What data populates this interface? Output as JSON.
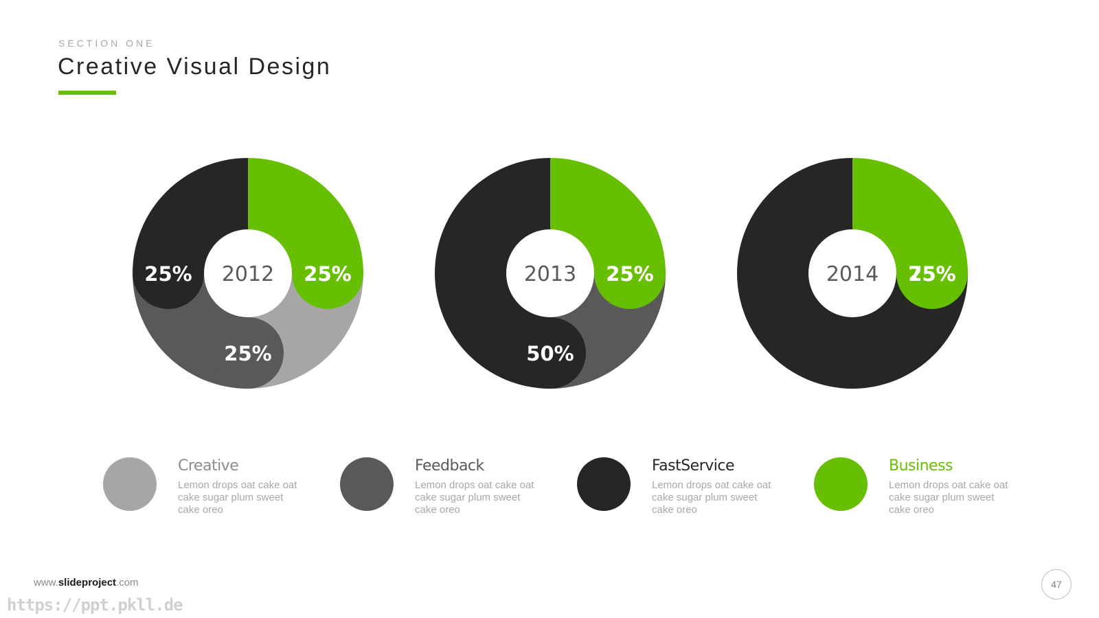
{
  "header": {
    "section_label": "SECTION ONE",
    "title": "Creative Visual Design"
  },
  "colors": {
    "accent": "#66bf00",
    "creative": "#a6a6a6",
    "feedback": "#595959",
    "fastservice": "#262626",
    "business": "#66bf00"
  },
  "chart_data": [
    {
      "type": "pie",
      "center_label": "2012",
      "slices": [
        {
          "category": "Business",
          "value": 25,
          "label": "25%"
        },
        {
          "category": "Creative",
          "value": 25,
          "label": "25%"
        },
        {
          "category": "Feedback",
          "value": 25,
          "label": "25%"
        },
        {
          "category": "FastService",
          "value": 25,
          "label": "25%"
        }
      ]
    },
    {
      "type": "pie",
      "center_label": "2013",
      "slices": [
        {
          "category": "Business",
          "value": 25,
          "label": "25%"
        },
        {
          "category": "Feedback",
          "value": 25,
          "label": "25%"
        },
        {
          "category": "FastService",
          "value": 50,
          "label": "50%"
        }
      ]
    },
    {
      "type": "pie",
      "center_label": "2014",
      "slices": [
        {
          "category": "Business",
          "value": 25,
          "label": "25%"
        },
        {
          "category": "FastService",
          "value": 75,
          "label": "75%"
        }
      ]
    }
  ],
  "legend": [
    {
      "name": "Creative",
      "description": "Lemon drops oat cake oat cake sugar plum sweet cake oreo",
      "color": "#a6a6a6",
      "name_color": "#8c8c8c"
    },
    {
      "name": "Feedback",
      "description": "Lemon drops oat cake oat cake sugar plum sweet cake oreo",
      "color": "#595959",
      "name_color": "#595959"
    },
    {
      "name": "FastService",
      "description": "Lemon drops oat cake oat cake sugar plum sweet cake oreo",
      "color": "#262626",
      "name_color": "#262626"
    },
    {
      "name": "Business",
      "description": "Lemon drops oat cake oat cake sugar plum sweet cake oreo",
      "color": "#66bf00",
      "name_color": "#66bf00"
    }
  ],
  "footer": {
    "url_prefix": "www.",
    "url_brand": "slideproject",
    "url_suffix": ".com",
    "page_number": "47",
    "watermark": "https://ppt.pkll.de"
  }
}
